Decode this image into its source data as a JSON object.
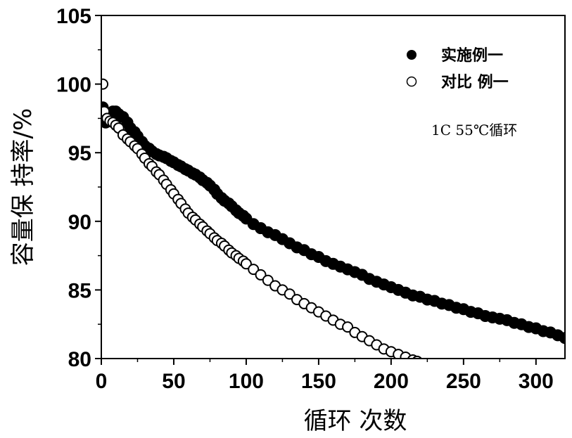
{
  "chart_data": {
    "type": "scatter",
    "title": "",
    "xlabel": "循环 次数",
    "ylabel": "容量保 持率/%",
    "xlim": [
      0,
      320
    ],
    "ylim": [
      80,
      105
    ],
    "xticks": [
      "0",
      "50",
      "100",
      "150",
      "200",
      "250",
      "300"
    ],
    "yticks": [
      "80",
      "85",
      "90",
      "95",
      "100",
      "105"
    ],
    "grid": false,
    "legend_position": "top-right",
    "annotation": "1C 55℃循环",
    "series": [
      {
        "name": "实施例一",
        "marker": "filled-circle",
        "color": "#000000",
        "x": [
          1,
          3,
          5,
          8,
          10,
          12,
          15,
          18,
          20,
          23,
          25,
          28,
          30,
          33,
          35,
          38,
          40,
          43,
          45,
          48,
          50,
          53,
          55,
          58,
          60,
          63,
          65,
          68,
          70,
          73,
          75,
          78,
          80,
          83,
          85,
          88,
          90,
          93,
          95,
          98,
          100,
          105,
          110,
          115,
          120,
          125,
          130,
          135,
          140,
          145,
          150,
          155,
          160,
          165,
          170,
          175,
          180,
          185,
          190,
          195,
          200,
          205,
          210,
          215,
          220,
          225,
          230,
          235,
          240,
          245,
          250,
          255,
          260,
          265,
          270,
          275,
          280,
          285,
          290,
          295,
          300,
          305,
          310,
          315,
          320
        ],
        "y": [
          98.3,
          97.2,
          97.3,
          98,
          98,
          97.8,
          97.6,
          97.2,
          96.8,
          96.5,
          96.2,
          95.8,
          95.5,
          95.3,
          95.1,
          94.9,
          94.8,
          94.7,
          94.6,
          94.4,
          94.3,
          94.1,
          94,
          93.8,
          93.7,
          93.5,
          93.4,
          93.2,
          93,
          92.8,
          92.6,
          92.3,
          92,
          91.7,
          91.5,
          91.3,
          91.1,
          90.8,
          90.6,
          90.4,
          90.2,
          89.8,
          89.5,
          89.2,
          89,
          88.7,
          88.4,
          88.1,
          87.9,
          87.6,
          87.4,
          87.1,
          86.9,
          86.7,
          86.5,
          86.3,
          86.1,
          85.8,
          85.6,
          85.4,
          85.2,
          85,
          84.8,
          84.6,
          84.5,
          84.3,
          84.2,
          84,
          83.9,
          83.7,
          83.6,
          83.4,
          83.3,
          83.1,
          83,
          82.9,
          82.8,
          82.6,
          82.5,
          82.3,
          82.2,
          82,
          81.9,
          81.7,
          81.5
        ]
      },
      {
        "name": "对比 例一",
        "marker": "open-circle",
        "color": "#000000",
        "x": [
          1,
          2,
          4,
          6,
          8,
          10,
          12,
          15,
          18,
          20,
          23,
          25,
          28,
          30,
          33,
          35,
          38,
          40,
          43,
          45,
          48,
          50,
          53,
          55,
          58,
          60,
          63,
          65,
          68,
          70,
          73,
          75,
          78,
          80,
          83,
          85,
          88,
          90,
          93,
          95,
          98,
          100,
          105,
          110,
          115,
          120,
          125,
          130,
          135,
          140,
          145,
          150,
          155,
          160,
          165,
          170,
          175,
          180,
          185,
          190,
          195,
          200,
          205,
          210,
          215,
          218
        ],
        "y": [
          100,
          98,
          97.5,
          97.3,
          97.2,
          97,
          96.8,
          96.3,
          96,
          95.8,
          95.5,
          95.3,
          94.9,
          94.6,
          94.2,
          94,
          93.6,
          93.4,
          93,
          92.7,
          92.3,
          92,
          91.6,
          91.3,
          90.9,
          90.6,
          90.3,
          90.1,
          89.8,
          89.6,
          89.3,
          89.1,
          88.8,
          88.6,
          88.4,
          88.2,
          87.9,
          87.7,
          87.5,
          87.3,
          87.1,
          86.9,
          86.5,
          86.1,
          85.7,
          85.3,
          85,
          84.7,
          84.3,
          84,
          83.7,
          83.4,
          83.1,
          82.8,
          82.5,
          82.3,
          81.9,
          81.6,
          81.3,
          81,
          80.7,
          80.5,
          80.3,
          80.1,
          79.9,
          79.8
        ]
      }
    ]
  }
}
